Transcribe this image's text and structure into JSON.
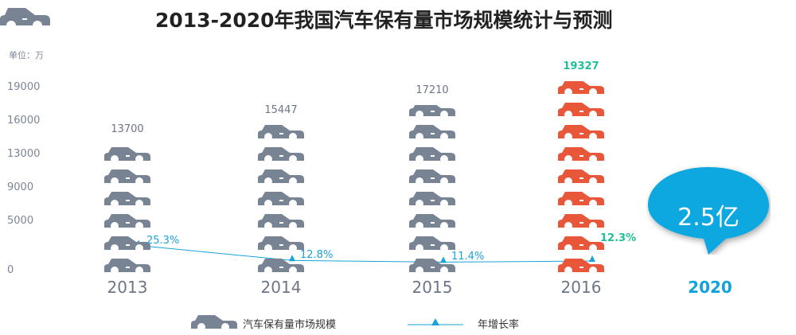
{
  "title": "2013-2020年我国汽车保有量市场规模统计与预测",
  "unit_label": "单位：万",
  "colors": {
    "car_gray": "#788394",
    "car_highlight": "#e9573a",
    "line": "#1aa3d9",
    "highlight_text": "#1fbf9a",
    "bubble": "#11a8e0"
  },
  "chart_data": {
    "type": "bar",
    "mark": "pictograph-car-stack",
    "categories": [
      "2013",
      "2014",
      "2015",
      "2016"
    ],
    "yticks": [
      "0",
      "5000",
      "9000",
      "13000",
      "16000",
      "19000"
    ],
    "series": [
      {
        "name": "汽车保有量市场规模",
        "values": [
          13700,
          15447,
          17210,
          19327
        ],
        "labels": [
          "13700",
          "15447",
          "17210",
          "19327"
        ]
      },
      {
        "name": "年增长率",
        "type": "line",
        "values": [
          25.3,
          12.8,
          11.4,
          12.3
        ],
        "labels": [
          "25.3%",
          "12.8%",
          "11.4%",
          "12.3%"
        ]
      }
    ],
    "highlight_index": 3,
    "forecast": {
      "year": "2020",
      "value_label": "2.5亿"
    },
    "legend": [
      "汽车保有量市场规模",
      "年增长率"
    ],
    "legend_position": "bottom"
  }
}
